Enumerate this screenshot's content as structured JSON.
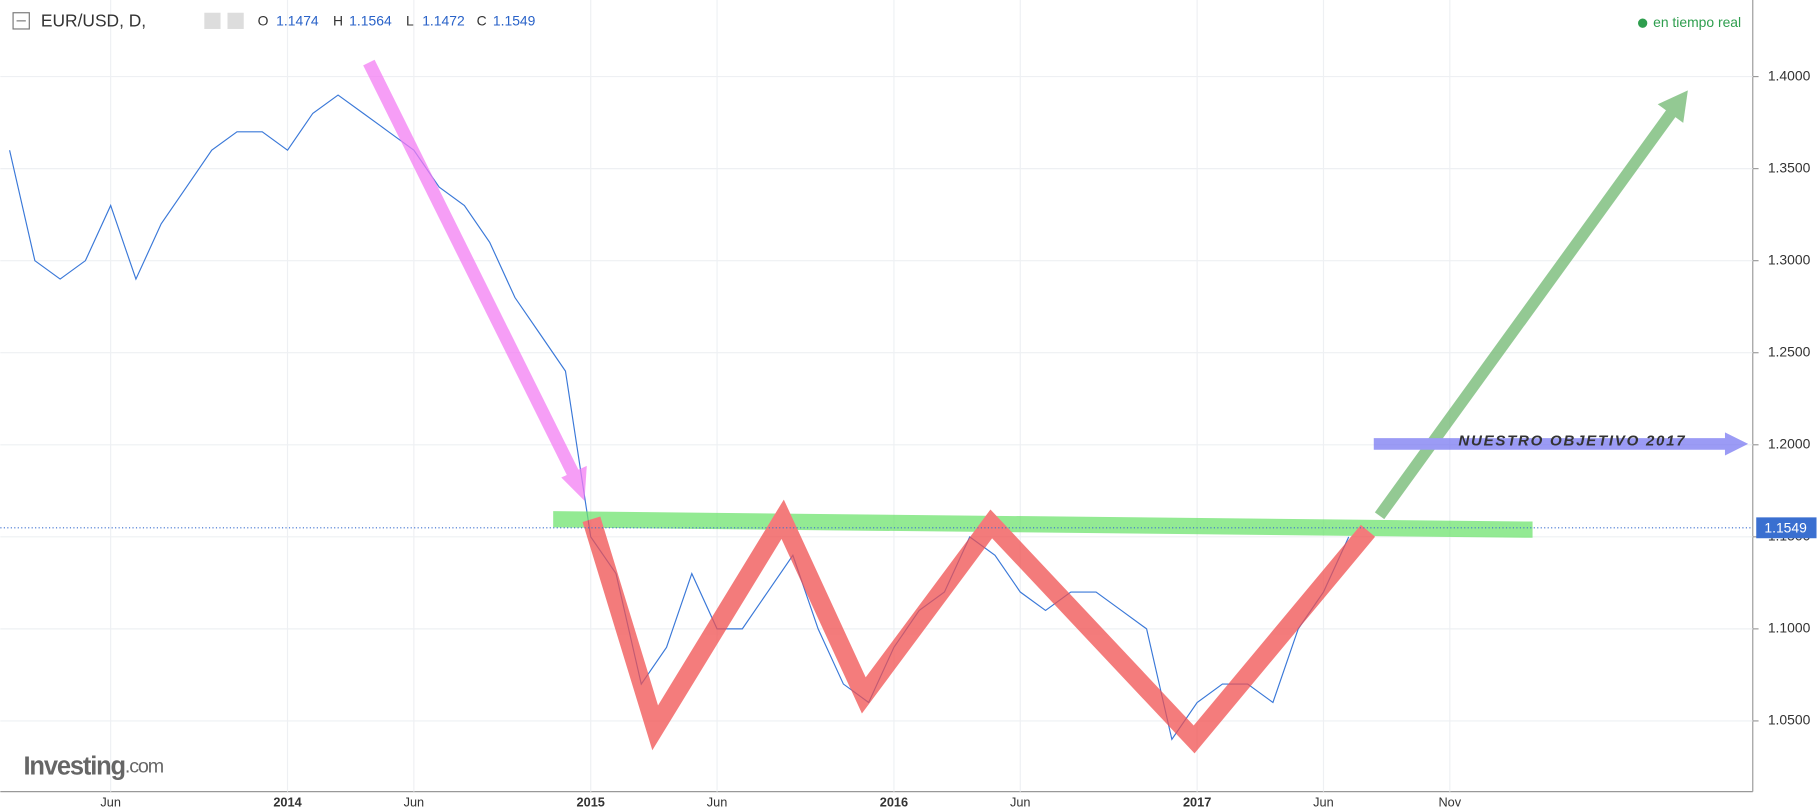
{
  "chart_data": {
    "type": "line",
    "title": "EUR/USD, D,",
    "ohlc": {
      "o_label": "O",
      "open": 1.1474,
      "h_label": "H",
      "high": 1.1564,
      "l_label": "L",
      "low": 1.1472,
      "c_label": "C",
      "close": 1.1549
    },
    "status": "en tiempo real",
    "annotation": "NUESTRO OBJETIVO 2017",
    "brand": "Investing",
    "brand_suffix": ".com",
    "last_price": 1.1549,
    "color": "#3a78d8",
    "categories": [
      null,
      null,
      null,
      null,
      "Jun",
      null,
      null,
      null,
      null,
      null,
      null,
      "2014",
      null,
      null,
      null,
      null,
      "Jun",
      null,
      null,
      null,
      null,
      null,
      null,
      "2015",
      null,
      null,
      null,
      null,
      "Jun",
      null,
      null,
      null,
      null,
      null,
      null,
      "2016",
      null,
      null,
      null,
      null,
      "Jun",
      null,
      null,
      null,
      null,
      null,
      null,
      "2017",
      null,
      null,
      null,
      null,
      "Jun",
      null,
      null,
      null,
      null,
      "Nov",
      null,
      null,
      null,
      null,
      null,
      null,
      null,
      null,
      null,
      null,
      null
    ],
    "values": [
      1.36,
      1.3,
      1.29,
      1.3,
      1.33,
      1.29,
      1.32,
      1.34,
      1.36,
      1.37,
      1.37,
      1.36,
      1.38,
      1.39,
      1.38,
      1.37,
      1.36,
      1.34,
      1.33,
      1.31,
      1.28,
      1.26,
      1.24,
      1.15,
      1.13,
      1.07,
      1.09,
      1.13,
      1.1,
      1.1,
      1.12,
      1.14,
      1.1,
      1.07,
      1.06,
      1.09,
      1.11,
      1.12,
      1.15,
      1.14,
      1.12,
      1.11,
      1.12,
      1.12,
      1.11,
      1.1,
      1.04,
      1.06,
      1.07,
      1.07,
      1.06,
      1.1,
      1.12,
      1.15,
      null,
      null,
      null,
      null,
      null,
      null,
      null,
      null,
      null,
      null,
      null,
      null,
      null,
      null,
      null
    ],
    "ylim": [
      1.0116,
      1.4416
    ],
    "yticks": [
      {
        "value": 1.05,
        "label": "1.0500"
      },
      {
        "value": 1.1,
        "label": "1.1000"
      },
      {
        "value": 1.15,
        "label": "1.1500"
      },
      {
        "value": 1.2,
        "label": "1.2000"
      },
      {
        "value": 1.25,
        "label": "1.2500"
      },
      {
        "value": 1.3,
        "label": "1.3000"
      },
      {
        "value": 1.35,
        "label": "1.3500"
      },
      {
        "value": 1.4,
        "label": "1.4000"
      }
    ],
    "grid": true
  }
}
